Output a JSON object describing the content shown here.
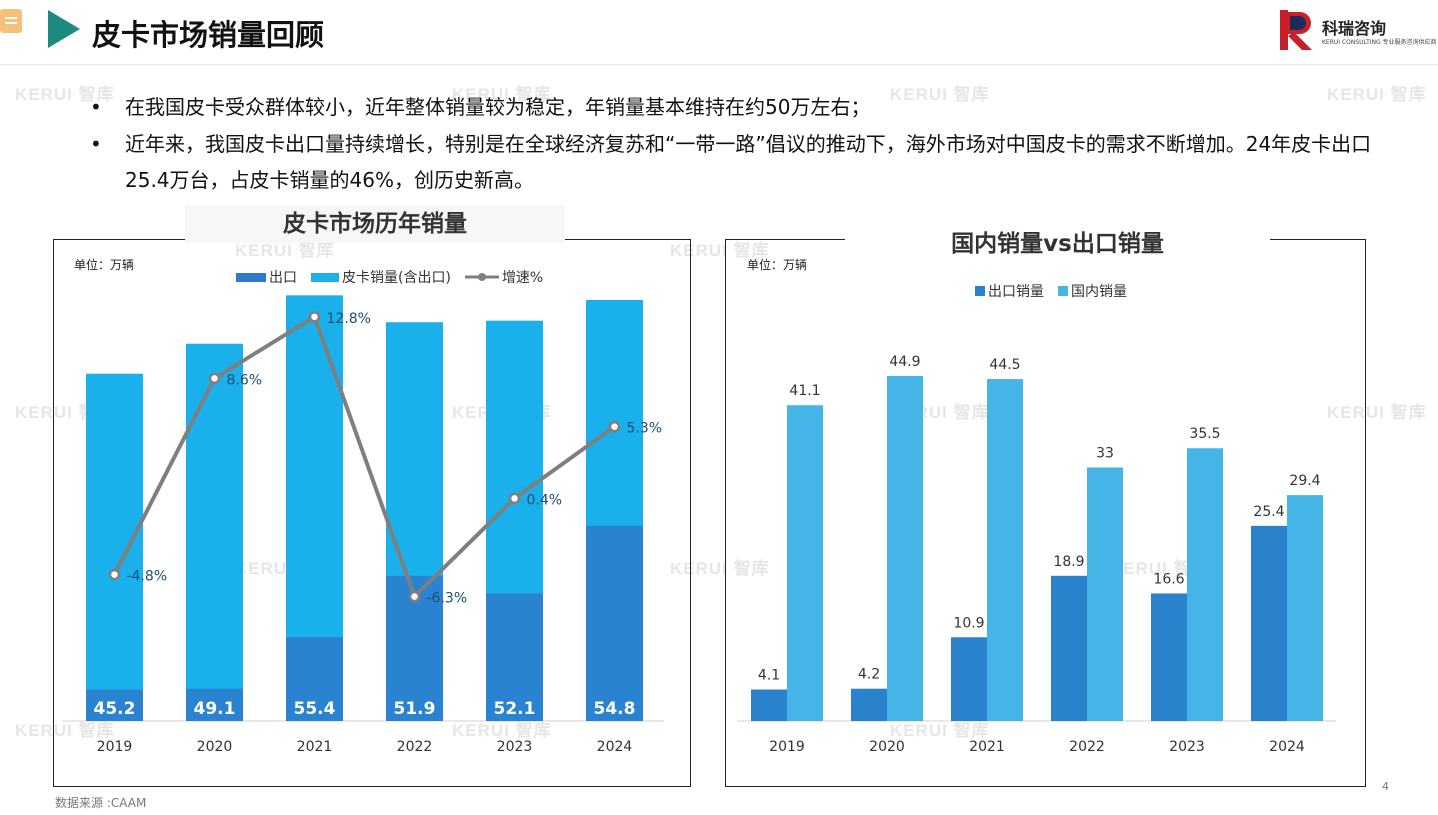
{
  "page": {
    "title": "皮卡市场销量回顾",
    "logo": {
      "name": "科瑞咨询",
      "sub": "KERUI CONSULTING 专业服务咨询供应商"
    },
    "watermark": "KERUI 智库",
    "bullets": [
      "在我国皮卡受众群体较小，近年整体销量较为稳定，年销量基本维持在约50万左右；",
      "近年来，我国皮卡出口量持续增长，特别是在全球经济复苏和“一带一路”倡议的推动下，海外市场对中国皮卡的需求不断增加。24年皮卡出口25.4万台，占皮卡销量的46%，创历史新高。"
    ],
    "source": "数据来源 :CAAM",
    "page_number": "4"
  },
  "colors": {
    "accent": "#1f8a80",
    "export_bar_left": "#2e7bcc",
    "total_bar": "#1ab0ec",
    "growth_line": "#7f7f7f",
    "export_bar_right": "#2a82cc",
    "domestic_bar": "#45b4e6"
  },
  "chart_data": [
    {
      "type": "bar",
      "title": "皮卡市场历年销量",
      "unit": "单位：万辆",
      "categories": [
        "2019",
        "2020",
        "2021",
        "2022",
        "2023",
        "2024"
      ],
      "series": [
        {
          "name": "出口",
          "values": [
            4.1,
            4.2,
            10.9,
            18.9,
            16.6,
            25.4
          ]
        },
        {
          "name": "皮卡销量(含出口)",
          "values": [
            45.2,
            49.1,
            55.4,
            51.9,
            52.1,
            54.8
          ]
        },
        {
          "name": "增速%",
          "type": "line",
          "values": [
            -4.8,
            8.6,
            12.8,
            -6.3,
            0.4,
            5.3
          ],
          "labels": [
            "-4.8%",
            "8.6%",
            "12.8%",
            "-6.3%",
            "0.4%",
            "5.3%"
          ]
        }
      ],
      "bar_labels": [
        "45.2",
        "49.1",
        "55.4",
        "51.9",
        "52.1",
        "54.8"
      ],
      "ylim": [
        0,
        60
      ],
      "growth_ylim": [
        -12,
        16
      ],
      "legend": "top"
    },
    {
      "type": "bar",
      "title": "国内销量vs出口销量",
      "unit": "单位：万辆",
      "categories": [
        "2019",
        "2020",
        "2021",
        "2022",
        "2023",
        "2024"
      ],
      "series": [
        {
          "name": "出口销量",
          "values": [
            4.1,
            4.2,
            10.9,
            18.9,
            16.6,
            25.4
          ],
          "labels": [
            "4.1",
            "4.2",
            "10.9",
            "18.9",
            "16.6",
            "25.4"
          ]
        },
        {
          "name": "国内销量",
          "values": [
            41.1,
            44.9,
            44.5,
            33,
            35.5,
            29.4
          ],
          "labels": [
            "41.1",
            "44.9",
            "44.5",
            "33",
            "35.5",
            "29.4"
          ]
        }
      ],
      "ylim": [
        0,
        60
      ],
      "legend": "top"
    }
  ]
}
